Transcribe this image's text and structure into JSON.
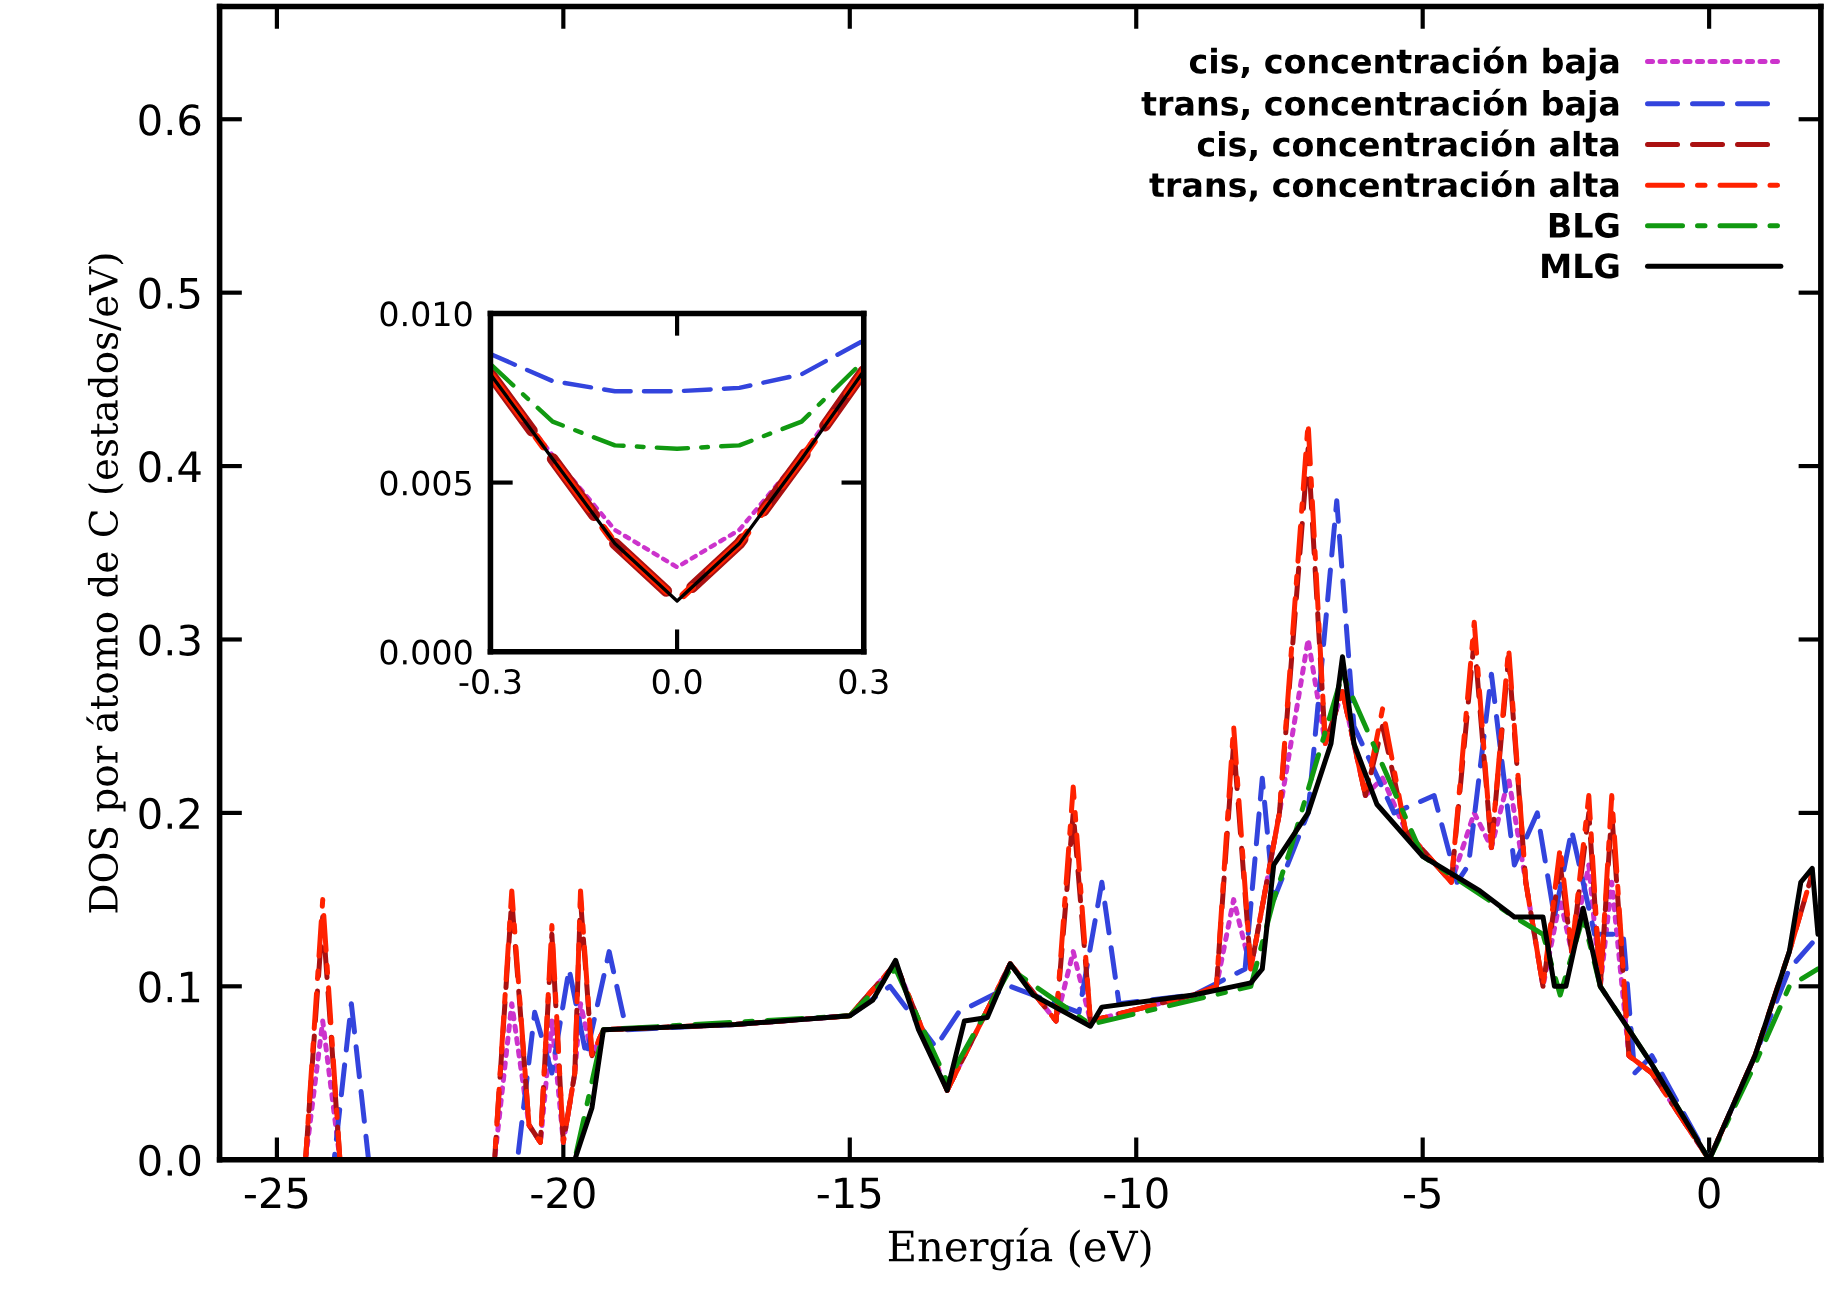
{
  "chart_data": [
    {
      "type": "line",
      "xlabel": "Energía (eV)",
      "ylabel": "DOS por átomo de C (estados/eV)",
      "xlim": [
        -26,
        1.95
      ],
      "ylim": [
        0,
        0.665
      ],
      "xticks": [
        -25,
        -20,
        -15,
        -10,
        -5,
        0
      ],
      "yticks": [
        {
          "value": 0,
          "label": "0.0"
        },
        {
          "value": 0.1,
          "label": "0.1"
        },
        {
          "value": 0.2,
          "label": "0.2"
        },
        {
          "value": 0.3,
          "label": "0.3"
        },
        {
          "value": 0.4,
          "label": "0.4"
        },
        {
          "value": 0.5,
          "label": "0.5"
        },
        {
          "value": 0.6,
          "label": "0.6"
        }
      ],
      "grid": false,
      "legend": "top right",
      "series": [
        {
          "name": "cis, concentración baja",
          "color": "#cc33cc",
          "line_style": "dotted",
          "x": [
            -26,
            -24.5,
            -24.2,
            -23.9,
            -21.2,
            -20.9,
            -20.6,
            -20.4,
            -20.2,
            -20.0,
            -19.8,
            -19.7,
            -19.5,
            -19.3,
            -17,
            -15,
            -14.2,
            -13.3,
            -12.2,
            -11.4,
            -11.1,
            -10.8,
            -9,
            -8.6,
            -8.3,
            -8.0,
            -7.5,
            -7.0,
            -6.7,
            -6.4,
            -6.0,
            -5.7,
            -5.3,
            -4.5,
            -4.1,
            -3.8,
            -3.5,
            -3.2,
            -2.9,
            -2.6,
            -2.4,
            -2.1,
            -1.9,
            -1.7,
            -1.4,
            -1.0,
            0
          ],
          "values": [
            0,
            0,
            0.08,
            0,
            0,
            0.09,
            0.02,
            0.01,
            0.08,
            0.01,
            0.05,
            0.09,
            0.06,
            0.075,
            0.078,
            0.083,
            0.113,
            0.04,
            0.113,
            0.08,
            0.12,
            0.08,
            0.095,
            0.1,
            0.15,
            0.11,
            0.2,
            0.3,
            0.24,
            0.27,
            0.21,
            0.22,
            0.19,
            0.16,
            0.2,
            0.18,
            0.22,
            0.16,
            0.1,
            0.15,
            0.12,
            0.17,
            0.1,
            0.16,
            0.06,
            0.05,
            0
          ]
        },
        {
          "name": "trans, concentración baja",
          "color": "#3344dd",
          "line_style": "dashed",
          "x": [
            -26,
            -24,
            -23.7,
            -23.4,
            -20.8,
            -20.5,
            -20.2,
            -19.9,
            -19.6,
            -19.2,
            -18.9,
            -17,
            -15,
            -14.3,
            -13.5,
            -13.1,
            -12.2,
            -11,
            -10.6,
            -10.3,
            -9,
            -8.1,
            -7.8,
            -7.6,
            -7.0,
            -6.5,
            -6.2,
            -5.5,
            -4.8,
            -4.4,
            -4.2,
            -3.8,
            -3.4,
            -3.0,
            -2.7,
            -2.4,
            -2.0,
            -1.5,
            -1.3,
            -1.0,
            0,
            0.8,
            1.4,
            1.8
          ],
          "values": [
            0,
            0,
            0.09,
            0,
            0,
            0.085,
            0.05,
            0.11,
            0.06,
            0.12,
            0.075,
            0.078,
            0.083,
            0.1,
            0.065,
            0.085,
            0.1,
            0.085,
            0.16,
            0.09,
            0.095,
            0.11,
            0.22,
            0.15,
            0.2,
            0.38,
            0.25,
            0.2,
            0.21,
            0.16,
            0.17,
            0.28,
            0.17,
            0.2,
            0.14,
            0.19,
            0.13,
            0.13,
            0.05,
            0.06,
            0,
            0.06,
            0.11,
            0.125
          ]
        },
        {
          "name": "cis, concentración alta",
          "color": "#aa1111",
          "line_style": "dashed",
          "x": [
            -26,
            -24.5,
            -24.2,
            -23.9,
            -21.2,
            -20.9,
            -20.6,
            -20.4,
            -20.2,
            -20.0,
            -19.8,
            -19.7,
            -19.5,
            -19.3,
            -17,
            -15,
            -14.2,
            -13.3,
            -12.2,
            -11.4,
            -11.1,
            -10.8,
            -9,
            -8.6,
            -8.3,
            -8.0,
            -7.5,
            -7.0,
            -6.7,
            -6.4,
            -6.0,
            -5.7,
            -5.3,
            -4.5,
            -4.1,
            -3.8,
            -3.5,
            -3.2,
            -2.9,
            -2.6,
            -2.4,
            -2.1,
            -1.9,
            -1.7,
            -1.4,
            -1.0,
            0,
            0.8,
            1.4,
            1.8
          ],
          "values": [
            0,
            0,
            0.14,
            0,
            0,
            0.15,
            0.02,
            0.01,
            0.13,
            0.01,
            0.05,
            0.15,
            0.06,
            0.075,
            0.078,
            0.083,
            0.113,
            0.04,
            0.113,
            0.08,
            0.2,
            0.08,
            0.095,
            0.1,
            0.24,
            0.11,
            0.2,
            0.41,
            0.24,
            0.27,
            0.21,
            0.25,
            0.19,
            0.16,
            0.3,
            0.18,
            0.29,
            0.16,
            0.1,
            0.17,
            0.12,
            0.2,
            0.1,
            0.2,
            0.06,
            0.05,
            0,
            0.06,
            0.12,
            0.165
          ]
        },
        {
          "name": "trans, concentración alta",
          "color": "#ff2200",
          "line_style": "dashdot",
          "x": [
            -26,
            -24.5,
            -24.2,
            -23.9,
            -21.2,
            -20.9,
            -20.6,
            -20.4,
            -20.2,
            -20.0,
            -19.8,
            -19.7,
            -19.5,
            -19.3,
            -17,
            -15,
            -14.2,
            -13.3,
            -12.2,
            -11.4,
            -11.1,
            -10.8,
            -9,
            -8.6,
            -8.3,
            -8.0,
            -7.5,
            -7.0,
            -6.7,
            -6.4,
            -6.0,
            -5.7,
            -5.3,
            -4.5,
            -4.1,
            -3.8,
            -3.5,
            -3.2,
            -2.9,
            -2.6,
            -2.4,
            -2.1,
            -1.9,
            -1.7,
            -1.4,
            -1.0,
            0,
            0.8,
            1.4,
            1.8
          ],
          "values": [
            0,
            0,
            0.15,
            0,
            0,
            0.155,
            0.02,
            0.01,
            0.135,
            0.01,
            0.05,
            0.155,
            0.06,
            0.075,
            0.078,
            0.083,
            0.113,
            0.04,
            0.113,
            0.08,
            0.215,
            0.08,
            0.095,
            0.1,
            0.25,
            0.11,
            0.2,
            0.425,
            0.24,
            0.27,
            0.21,
            0.26,
            0.19,
            0.16,
            0.31,
            0.18,
            0.295,
            0.16,
            0.1,
            0.18,
            0.12,
            0.21,
            0.1,
            0.21,
            0.06,
            0.05,
            0,
            0.06,
            0.12,
            0.165
          ]
        },
        {
          "name": "BLG",
          "color": "#119911",
          "line_style": "dashdot",
          "x": [
            -26,
            -19.8,
            -19.3,
            -15,
            -14.2,
            -13.3,
            -12.2,
            -10.8,
            -8,
            -7.6,
            -7.3,
            -6.4,
            -5,
            -3.4,
            -2.9,
            -2.6,
            -2.2,
            -1.9,
            -1.0,
            0,
            0.8,
            1.4,
            1.9
          ],
          "values": [
            0,
            0,
            0.075,
            0.083,
            0.11,
            0.045,
            0.11,
            0.078,
            0.1,
            0.15,
            0.18,
            0.28,
            0.175,
            0.14,
            0.13,
            0.095,
            0.14,
            0.1,
            0.055,
            0,
            0.055,
            0.1,
            0.11
          ]
        },
        {
          "name": "MLG",
          "color": "#000000",
          "line_style": "solid",
          "x": [
            -26,
            -19.8,
            -19.5,
            -19.3,
            -17,
            -15,
            -14.6,
            -14.2,
            -13.8,
            -13.3,
            -13.0,
            -12.6,
            -12.2,
            -11.8,
            -10.8,
            -10.6,
            -9,
            -8,
            -7.8,
            -7.6,
            -7.3,
            -7,
            -6.6,
            -6.4,
            -6.2,
            -5.8,
            -5,
            -4,
            -3.4,
            -2.9,
            -2.7,
            -2.5,
            -2.2,
            -1.9,
            -1.0,
            0,
            0.8,
            1.4,
            1.6,
            1.8,
            1.9
          ],
          "values": [
            0,
            0,
            0.03,
            0.075,
            0.078,
            0.083,
            0.092,
            0.115,
            0.075,
            0.04,
            0.08,
            0.082,
            0.113,
            0.095,
            0.077,
            0.088,
            0.095,
            0.102,
            0.11,
            0.17,
            0.185,
            0.2,
            0.24,
            0.29,
            0.24,
            0.205,
            0.175,
            0.155,
            0.14,
            0.14,
            0.1,
            0.1,
            0.145,
            0.1,
            0.055,
            0,
            0.06,
            0.12,
            0.16,
            0.168,
            0.13
          ]
        }
      ]
    },
    {
      "type": "line",
      "xlim": [
        -0.3,
        0.3
      ],
      "ylim": [
        0,
        0.01
      ],
      "xticks": [
        {
          "value": -0.3,
          "label": "-0.3"
        },
        {
          "value": 0,
          "label": "0.0"
        },
        {
          "value": 0.3,
          "label": "0.3"
        }
      ],
      "yticks": [
        {
          "value": 0,
          "label": "0.000"
        },
        {
          "value": 0.005,
          "label": "0.005"
        },
        {
          "value": 0.01,
          "label": "0.010"
        }
      ],
      "x": [
        -0.3,
        -0.2,
        -0.1,
        0,
        0.1,
        0.2,
        0.3
      ],
      "series": [
        {
          "color": "#cc33cc",
          "line_style": "dotted",
          "values": [
            0.0082,
            0.0058,
            0.0036,
            0.0025,
            0.0036,
            0.0058,
            0.0083
          ]
        },
        {
          "color": "#3344dd",
          "line_style": "dashed",
          "values": [
            0.0088,
            0.008,
            0.0077,
            0.0077,
            0.0078,
            0.0082,
            0.0092
          ]
        },
        {
          "color": "#aa1111",
          "line_style": "dashed",
          "values": [
            0.0082,
            0.0057,
            0.0032,
            0.0015,
            0.0032,
            0.0057,
            0.0083
          ]
        },
        {
          "color": "#ff2200",
          "line_style": "dashdot",
          "values": [
            0.0082,
            0.0057,
            0.0032,
            0.0015,
            0.0032,
            0.0057,
            0.0083
          ]
        },
        {
          "color": "#119911",
          "line_style": "dashdot",
          "values": [
            0.0085,
            0.0068,
            0.0061,
            0.006,
            0.0061,
            0.0068,
            0.0086
          ]
        },
        {
          "color": "#000000",
          "line_style": "solid",
          "values": [
            0.0082,
            0.0057,
            0.0032,
            0.0015,
            0.0032,
            0.0057,
            0.0083
          ]
        }
      ]
    }
  ]
}
